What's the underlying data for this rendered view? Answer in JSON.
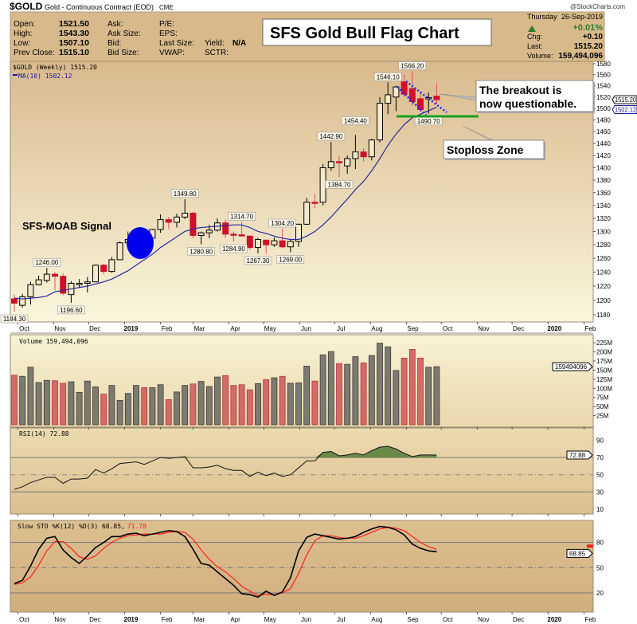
{
  "header": {
    "symbol": "$GOLD",
    "description": "Gold - Continuous Contract (EOD)",
    "exchange": "CME",
    "watermark": "@StockCharts.com",
    "fields_left": [
      {
        "label": "Open:",
        "value": "1521.50"
      },
      {
        "label": "High:",
        "value": "1543.30"
      },
      {
        "label": "Low:",
        "value": "1507.10"
      },
      {
        "label": "Prev Close:",
        "value": "1515.10"
      }
    ],
    "fields_mid": [
      "Ask:",
      "Ask Size:",
      "Bid:",
      "Bid Size:"
    ],
    "fields_mid2": [
      "P/E:",
      "EPS:",
      "Last Size:",
      "VWAP:"
    ],
    "fields_mid3": [
      "",
      "",
      "Yield:",
      "SCTR:"
    ],
    "yield_value": "N/A",
    "day": "Thursday",
    "date": "26-Sep-2019",
    "change_pct": "+0.01%",
    "chg_label": "Chg:",
    "chg_value": "+0.10",
    "last_label": "Last:",
    "last_value": "1515.20",
    "volume_label": "Volume:",
    "volume_value": "159,494,096",
    "colors": {
      "header_bg": "#d8b98b",
      "up": "#2e7d32"
    }
  },
  "chart_data": {
    "type": "candlestick",
    "title": "SFS Gold Bull Flag Chart",
    "price_legend": "$GOLD (Weekly) 1515.20",
    "ma_legend": "MA(10) 1502.12",
    "price_axis": {
      "scale": "log",
      "range": [
        1170,
        1590
      ],
      "ticks": [
        1180,
        1200,
        1220,
        1240,
        1260,
        1280,
        1300,
        1320,
        1340,
        1360,
        1380,
        1400,
        1420,
        1440,
        1460,
        1480,
        1500,
        1520,
        1540,
        1560,
        1580
      ]
    },
    "x_axis": {
      "months": [
        {
          "date": "2018-10-01",
          "label": "Oct"
        },
        {
          "date": "2018-11-01",
          "label": "Nov"
        },
        {
          "date": "2018-12-01",
          "label": "Dec"
        },
        {
          "date": "2019-01-01",
          "label": "2019",
          "bold": true
        },
        {
          "date": "2019-02-01",
          "label": "Feb"
        },
        {
          "date": "2019-03-01",
          "label": "Mar"
        },
        {
          "date": "2019-04-01",
          "label": "Apr"
        },
        {
          "date": "2019-05-01",
          "label": "May"
        },
        {
          "date": "2019-06-01",
          "label": "Jun"
        },
        {
          "date": "2019-07-01",
          "label": "Jul"
        },
        {
          "date": "2019-08-01",
          "label": "Aug"
        },
        {
          "date": "2019-09-01",
          "label": "Sep"
        },
        {
          "date": "2019-10-01",
          "label": "Oct"
        },
        {
          "date": "2019-11-01",
          "label": "Nov"
        },
        {
          "date": "2019-12-01",
          "label": "Dec"
        },
        {
          "date": "2020-01-01",
          "label": "2020",
          "bold": true
        },
        {
          "date": "2020-02-01",
          "label": "Feb"
        }
      ]
    },
    "dates": [
      "2018-09-28",
      "2018-10-05",
      "2018-10-12",
      "2018-10-19",
      "2018-10-26",
      "2018-11-02",
      "2018-11-09",
      "2018-11-16",
      "2018-11-23",
      "2018-11-30",
      "2018-12-07",
      "2018-12-14",
      "2018-12-21",
      "2018-12-28",
      "2019-01-04",
      "2019-01-11",
      "2019-01-18",
      "2019-01-25",
      "2019-02-01",
      "2019-02-08",
      "2019-02-15",
      "2019-02-22",
      "2019-03-01",
      "2019-03-08",
      "2019-03-15",
      "2019-03-22",
      "2019-03-29",
      "2019-04-05",
      "2019-04-12",
      "2019-04-19",
      "2019-04-26",
      "2019-05-03",
      "2019-05-10",
      "2019-05-17",
      "2019-05-24",
      "2019-05-31",
      "2019-06-07",
      "2019-06-14",
      "2019-06-21",
      "2019-06-28",
      "2019-07-05",
      "2019-07-12",
      "2019-07-19",
      "2019-07-26",
      "2019-08-02",
      "2019-08-09",
      "2019-08-16",
      "2019-08-23",
      "2019-08-30",
      "2019-09-06",
      "2019-09-13",
      "2019-09-20",
      "2019-09-26"
    ],
    "ohlc": [
      [
        1202,
        1208,
        1184.3,
        1196
      ],
      [
        1193,
        1209,
        1190,
        1205
      ],
      [
        1205,
        1226,
        1194,
        1222
      ],
      [
        1222,
        1235,
        1221,
        1229
      ],
      [
        1228,
        1246,
        1225,
        1237
      ],
      [
        1237,
        1240,
        1214,
        1234
      ],
      [
        1234,
        1238,
        1207,
        1210
      ],
      [
        1208,
        1227,
        1196.6,
        1224
      ],
      [
        1222,
        1230,
        1218,
        1224
      ],
      [
        1224,
        1233,
        1211,
        1226
      ],
      [
        1226,
        1251,
        1226,
        1250
      ],
      [
        1250,
        1252,
        1237,
        1241
      ],
      [
        1241,
        1262,
        1239,
        1258
      ],
      [
        1258,
        1285,
        1258,
        1283
      ],
      [
        1283,
        1300,
        1276,
        1288
      ],
      [
        1288,
        1297,
        1285,
        1290
      ],
      [
        1284,
        1300,
        1279,
        1297
      ],
      [
        1290,
        1304,
        1280,
        1303
      ],
      [
        1303,
        1326,
        1298,
        1318
      ],
      [
        1318,
        1322,
        1304,
        1314
      ],
      [
        1314,
        1327,
        1306,
        1322
      ],
      [
        1322,
        1349.8,
        1319,
        1328
      ],
      [
        1328,
        1330,
        1290,
        1294
      ],
      [
        1294,
        1300,
        1280.8,
        1298
      ],
      [
        1298,
        1310,
        1290,
        1302
      ],
      [
        1302,
        1320,
        1300,
        1313
      ],
      [
        1313,
        1318,
        1290,
        1296
      ],
      [
        1296,
        1300,
        1284.9,
        1295
      ],
      [
        1295,
        1314.7,
        1294,
        1294
      ],
      [
        1293,
        1294,
        1273,
        1276
      ],
      [
        1276,
        1290,
        1267.3,
        1288
      ],
      [
        1287,
        1288,
        1267,
        1280
      ],
      [
        1280,
        1291,
        1277,
        1286
      ],
      [
        1286,
        1304.2,
        1275,
        1277
      ],
      [
        1277,
        1288,
        1269,
        1285
      ],
      [
        1285,
        1312,
        1277,
        1311
      ],
      [
        1311,
        1352,
        1310,
        1345
      ],
      [
        1345,
        1358,
        1336,
        1344
      ],
      [
        1345,
        1406,
        1340,
        1400
      ],
      [
        1400,
        1442.9,
        1395,
        1410
      ],
      [
        1410,
        1420,
        1384.7,
        1409
      ],
      [
        1403,
        1420,
        1390,
        1415
      ],
      [
        1415,
        1454.4,
        1398,
        1426
      ],
      [
        1426,
        1432,
        1410,
        1418
      ],
      [
        1418,
        1448,
        1412,
        1446
      ],
      [
        1446,
        1520,
        1442,
        1509
      ],
      [
        1509,
        1546.1,
        1490,
        1524
      ],
      [
        1520,
        1540,
        1495,
        1538
      ],
      [
        1547,
        1560,
        1520,
        1525
      ],
      [
        1535,
        1566.2,
        1505,
        1512
      ],
      [
        1517,
        1530,
        1493,
        1498
      ],
      [
        1517,
        1528,
        1490.7,
        1519
      ],
      [
        1521.5,
        1543.3,
        1507.1,
        1515.2
      ]
    ],
    "ma10": [
      1203,
      1202,
      1203,
      1204,
      1206,
      1212,
      1214,
      1216,
      1218,
      1220,
      1223,
      1226,
      1230,
      1236,
      1242,
      1250,
      1258,
      1266,
      1276,
      1284,
      1292,
      1300,
      1304,
      1306,
      1307,
      1308,
      1309,
      1310,
      1310,
      1306,
      1300,
      1297,
      1293,
      1290,
      1288,
      1288,
      1293,
      1300,
      1310,
      1322,
      1336,
      1350,
      1365,
      1378,
      1395,
      1415,
      1437,
      1456,
      1472,
      1484,
      1490,
      1496,
      1502.12
    ],
    "last_price_tag": "1515.20",
    "ma_tag": "1502.12",
    "price_labels": [
      {
        "i": 0,
        "text": "1184.30",
        "pos": "below"
      },
      {
        "i": 4,
        "text": "1246.00",
        "pos": "above"
      },
      {
        "i": 7,
        "text": "1196.60",
        "pos": "below"
      },
      {
        "i": 21,
        "text": "1349.80",
        "pos": "above"
      },
      {
        "i": 23,
        "text": "1280.80",
        "pos": "below"
      },
      {
        "i": 28,
        "text": "1314.70",
        "pos": "above"
      },
      {
        "i": 27,
        "text": "1284.90",
        "pos": "below"
      },
      {
        "i": 33,
        "text": "1304.20",
        "pos": "above"
      },
      {
        "i": 30,
        "text": "1267.30",
        "pos": "below"
      },
      {
        "i": 34,
        "text": "1269.00",
        "pos": "below"
      },
      {
        "i": 40,
        "text": "1384.70",
        "pos": "below"
      },
      {
        "i": 39,
        "text": "1442.90",
        "pos": "above"
      },
      {
        "i": 42,
        "text": "1454.40",
        "pos": "above"
      },
      {
        "i": 46,
        "text": "1546.10",
        "pos": "above"
      },
      {
        "i": 49,
        "text": "1566.20",
        "pos": "above"
      },
      {
        "i": 51,
        "text": "1490.70",
        "pos": "below"
      }
    ],
    "annotations": {
      "signal_text": "SFS-MOAB Signal",
      "breakout_line1": "The breakout is",
      "breakout_line2": "now questionable.",
      "stoploss_text": "Stoploss Zone",
      "stoploss_level": 1485,
      "signal_color": "#0000ee",
      "stoploss_color": "#1aa01a"
    },
    "volume": {
      "legend": "Volume 159,494,096",
      "tag": "159494096",
      "unit": "M",
      "ticks": [
        25,
        50,
        75,
        100,
        125,
        150,
        175,
        200,
        225
      ],
      "values": [
        136,
        133,
        158,
        116,
        122,
        121,
        114,
        118,
        89,
        120,
        104,
        84,
        108,
        67,
        86,
        108,
        102,
        102,
        110,
        69,
        90,
        108,
        112,
        119,
        105,
        131,
        135,
        108,
        110,
        96,
        113,
        124,
        129,
        133,
        114,
        115,
        161,
        120,
        192,
        201,
        168,
        166,
        187,
        170,
        190,
        224,
        214,
        149,
        183,
        207,
        183,
        158,
        159.5
      ],
      "colors": [
        "red",
        "gray",
        "gray",
        "gray",
        "gray",
        "red",
        "red",
        "gray",
        "gray",
        "gray",
        "gray",
        "red",
        "gray",
        "gray",
        "gray",
        "gray",
        "red",
        "gray",
        "gray",
        "red",
        "gray",
        "gray",
        "red",
        "gray",
        "gray",
        "gray",
        "red",
        "red",
        "red",
        "red",
        "gray",
        "red",
        "gray",
        "red",
        "gray",
        "gray",
        "gray",
        "red",
        "gray",
        "gray",
        "red",
        "gray",
        "gray",
        "red",
        "gray",
        "gray",
        "gray",
        "gray",
        "red",
        "red",
        "red",
        "gray",
        "gray"
      ]
    },
    "rsi": {
      "legend": "RSI(14) 72.88",
      "tag": "72.88",
      "ticks": [
        10,
        30,
        50,
        70,
        90
      ],
      "values": [
        33,
        36,
        41,
        44,
        47,
        47,
        40,
        45,
        45,
        46,
        56,
        52,
        57,
        63,
        64,
        65,
        62,
        66,
        70,
        69,
        70,
        71,
        58,
        58,
        59,
        61,
        57,
        55,
        55,
        48,
        53,
        49,
        52,
        48,
        50,
        58,
        66,
        66,
        76,
        77,
        72,
        73,
        75,
        73,
        78,
        82,
        83,
        80,
        75,
        71,
        73,
        73,
        72.88
      ]
    },
    "stochastic": {
      "legend_k": "Slow STO %K(12) %D(3) 68.85,",
      "legend_d": "71.78",
      "tag_k": "68.85",
      "ticks": [
        20,
        50,
        80
      ],
      "k": [
        31,
        35,
        52,
        72,
        85,
        87,
        71,
        62,
        55,
        64,
        74,
        80,
        87,
        87,
        90,
        91,
        88,
        90,
        92,
        94,
        93,
        87,
        72,
        55,
        53,
        45,
        37,
        29,
        19,
        18,
        15,
        22,
        17,
        21,
        38,
        70,
        86,
        90,
        88,
        86,
        84,
        85,
        87,
        92,
        96,
        99,
        98,
        95,
        89,
        78,
        73,
        70,
        68.85
      ],
      "d": [
        30,
        32,
        39,
        53,
        70,
        81,
        81,
        73,
        63,
        60,
        64,
        73,
        80,
        85,
        88,
        89,
        90,
        90,
        90,
        92,
        93,
        92,
        84,
        71,
        60,
        51,
        45,
        37,
        28,
        22,
        17,
        18,
        18,
        20,
        25,
        43,
        65,
        82,
        88,
        88,
        86,
        85,
        85,
        88,
        92,
        96,
        98,
        97,
        94,
        87,
        80,
        75,
        71.78
      ],
      "colors": {
        "k": "#000000",
        "d": "#ff2020"
      }
    }
  }
}
